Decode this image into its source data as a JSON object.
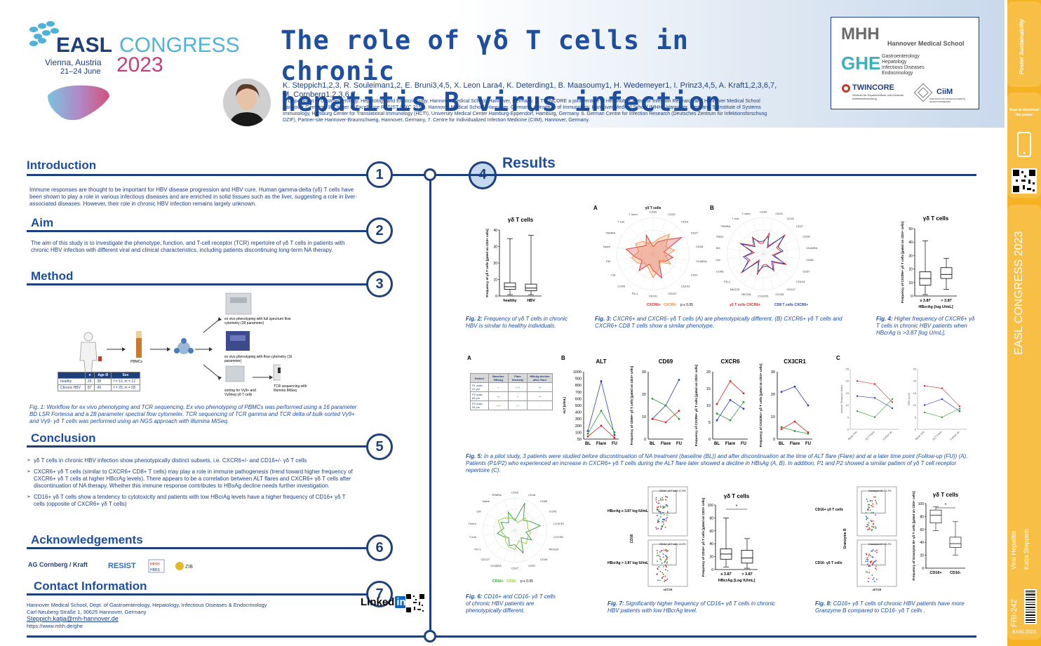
{
  "header": {
    "easl": "EASL",
    "congress": "CONGRESS",
    "city": "Vienna, Austria",
    "dates": "21–24 June",
    "year": "2023",
    "title_line1": "The role of γδ T cells in chronic",
    "title_line2": "hepatitis B virus infection",
    "authors": "K. Steppich1,2,3, R. Souleiman1,2, E. Bruni3,4,5, X. Leon Lara4, K. Deterding1, B. Maasoumy1, H. Wedemeyer1, I. Prinz3,4,5, A. Kraft1,2,3,6,7, M. Cornberg1,2,3,6,7",
    "affiliations": "1. Department of Gastroenterology, Hepatology and Endocrinology, Hannover Medical School, Hannover, Germany. 2. TWINCORE a joint venture of Helmholtz Centre for Infection Research and Hannover Medical School Hannover Germany. 3. Cluster of Excellence RESIST (EXC 2155), Hannover Medical School, Hannover, Germany. 4. Institute of Immunology, Hannover Medical School (MHH), Hannover, Germany. 5. Institute of Systems Immunology, Hamburg Center for Translational Immunology (HCTI), University Medical Center Hamburg-Eppendorf, Hamburg, Germany. 6. German Centre for Infection Research (Deutsches Zentrum für Infektionsforschung DZIF), Partner-site Hannover-Braunschweig, Hannover, Germany, 7. Centre for Individualized Infection Medicine (CIIM), Hannover, Germany."
  },
  "institutions": {
    "mhh": "Hannover Medical School",
    "ghe_lines": [
      "Gastroenterology",
      "Hepatology",
      "Infectious Diseases",
      "Endocrinology"
    ],
    "twincore": "TWINCORE",
    "twincore_sub": "Zentrum für Experimentelle und Klinische Infektionsforschung",
    "ciim": "CiiM",
    "ciim_sub": "ZENTRUM FÜR INDIVIDUALISIERTE INFEKTIONSMEDIZIN"
  },
  "sidebar": {
    "scan_text": "Scan to download the poster",
    "congress": "EASL CONGRESS 2023",
    "topic": "Viral Hepatitis",
    "author": "Katja Steppich",
    "code": "FRI-242",
    "footer": "EASL2023"
  },
  "sections": {
    "intro_title": "Introduction",
    "intro_text": "Immune responses are thought to be important for HBV disease progression and HBV cure. Human gamma-delta (γδ) T cells have been shown to play a role in various infectious diseases and are enriched in solid tissues such as the liver, suggesting a role in liver-associated diseases. However, their role in chronic HBV infection remains largely unknown.",
    "aim_title": "Aim",
    "aim_text": "The aim of this study is to investigate the phenotype, function, and T-cell receptor (TCR) repertoire of γδ T cells in patients with chronic HBV infection with different viral and clinical characteristics, including patients discontinuing long-term NA therapy.",
    "method_title": "Method",
    "method_caption": "Fig. 1: Workflow for ex vivo phenotyping and TCR sequencing. Ex vivo phenotyping of PBMCs was performed using a 16 parameter BD LSR Fortessa and a 28 parameter spectral flow cytometer. TCR sequencing of TCR gamma and TCR delta of bulk-sorted Vγ9+ and Vγ9- γδ T cells was performed using an NGS approach with Illumina MiSeq.",
    "conclusion_title": "Conclusion",
    "conclusion_items": [
      "γδ T cells in chronic HBV infection show phenotypically distinct subsets, i.e. CXCR6+/- and CD16+/- γδ T cells",
      "CXCR6+ γδ T cells (similar to CXCR6+ CD8+ T cells) may play a role in immune pathogenesis (trend toward higher frequency of CXCR6+ γδ T cells at higher HBcrAg levels). There appears to be a correlation between ALT flares and CXCR6+ γδ T cells after discontinuation of NA therapy. Whether this immune response contributes to HBsAg decline needs further investigation.",
      "CD16+ γδ T cells show a tendency to cytotoxicity and patients with low HBcrAg levels have a higher frequency of CD16+ γδ T cells (opposite of CXCR6+ γδ T cells)"
    ],
    "ack_title": "Acknowledgements",
    "ack_group": "AG Cornberg / Kraft",
    "contact_title": "Contact Information",
    "contact_lines": [
      "Hannover Medical School, Dept. of Gastroenterology, Hepatology, Infectious Diseases & Endocrinology",
      "Carl-Neuberg-Straße 1, 30625 Hannover, Germany",
      "Steppich.katja@mh-hannover.de",
      "https://www.mhh.de/ghe"
    ],
    "linkedin": "Linked",
    "linkedin_in": "in",
    "results_title": "Results"
  },
  "numbers": [
    "1",
    "2",
    "3",
    "4",
    "5",
    "6",
    "7"
  ],
  "method": {
    "pbmcs": "PBMCs",
    "flow1": "ex vivo phenotyping with full spectrum flow cytometry (28 parameter)",
    "flow2": "ex vivo phenotyping with flow cytometry (16 parameter)",
    "sorting": "sorting for Vγ9+ and Vγ9neg γδ T cells",
    "tcr": "TCR sequencing with Illumina MiSeq",
    "table_headers": [
      "",
      "n",
      "Age Ø",
      "Sex"
    ],
    "table_rows": [
      [
        "healthy",
        "25",
        "38",
        "f = 13, m = 12"
      ],
      [
        "Chronic HBV",
        "87",
        "49",
        "f = 29, m = 58"
      ]
    ]
  },
  "figs": {
    "fig2_caption_b": "Fig. 2:",
    "fig2_caption": " Frequency of γδ T cells in chronic HBV is similar to healthy individuals.",
    "fig3_caption_b": "Fig. 3:",
    "fig3_caption": " CXCR6+ and CXCR6- γδ T cells (A) are phenotypically different. (B) CXCR6+ γδ T cells and CXCR6+ CD8 T cells show a similar phenotype.",
    "fig4_caption_b": "Fig. 4:",
    "fig4_caption": " Higher frequency of CXCR6+ γδ T cells in chronic HBV patients when HBcrAg is >3.87 [log U/mL].",
    "fig5_caption_b": "Fig. 5:",
    "fig5_caption": " In a pilot study, 3 patients were studied before discontinuation of NA treatment (baseline (BL)) and after discontinuation at the time of ALT flare (Flare) and at a later time point (Follow-up (FU)) (A). Patients (P1/P2) who experienced an increase in CXCR6+ γδ T cells during the ALT flare later showed a decline in HBsAg (A, B). In addition, P1 and P2 showed a similar pattern of γδ T cell receptor repertoire (C).",
    "fig6_caption_b": "Fig. 6:",
    "fig6_caption": " CD16+ and CD16- γδ T cells of chronic HBV patients are phenotypically different.",
    "fig7_caption_b": "Fig. 7:",
    "fig7_caption": " Significantly higher frequency of CD16+ γδ T cells in chronic HBV patients with low HBcrAg level.",
    "fig8_caption_b": "Fig. 8:",
    "fig8_caption": " CD16+ γδ T cells of chronic HBV patients have more Granzyme B compared to CD16- γδ T cells ."
  },
  "fig2": {
    "title": "γδ T cells",
    "ylabel": "Frequency of γδ T cells [gated on CD3+ cells]",
    "yticks": [
      "0",
      "10",
      "20",
      "30",
      "40"
    ],
    "cats": [
      "healthy",
      "HBV"
    ]
  },
  "fig3": {
    "labelA": "A",
    "labelB": "B",
    "titleA": "γδ T cells",
    "axesA": [
      "CD69",
      "CD25",
      "CD16",
      "CD27",
      "CD28",
      "CD45RA",
      "CD57",
      "CD103",
      "CD127",
      "CD161",
      "PD-1",
      "CCR5",
      "CM",
      "EM",
      "Naive",
      "TEMRA",
      "T eok.",
      "T mem."
    ],
    "axesB": [
      "CD69",
      "CD25",
      "CD16",
      "CD27",
      "CD28",
      "CD45RA",
      "CD56",
      "CD57",
      "CD103",
      "CD127",
      "CD161",
      "CX3CR1",
      "NKG2A",
      "NKG2D",
      "PD-1",
      "CCR5",
      "CM",
      "EM",
      "Naive",
      "TEMRA",
      "T eok.",
      "T mem."
    ],
    "legendA": [
      "CXCR6+",
      "CXCR6-",
      "p ≤ 0.05"
    ],
    "legendB": [
      "γδ T cells CXCR6+",
      "CD8 T cells CXCR6+"
    ]
  },
  "fig4": {
    "title": "γδ T cells",
    "ylabel": "Frequency of CXCR6+ γδ T cells [gated on CD3+ cells]",
    "yticks": [
      "0",
      "10",
      "20",
      "30",
      "40",
      "50"
    ],
    "cats": [
      "≤ 3.87",
      "> 3.87"
    ],
    "xlabel": "HBcrAg [log U/mL]"
  },
  "fig5": {
    "labelA": "A",
    "labelB": "B",
    "labelC": "C",
    "table_headers": [
      "Patient",
      "Baseline HBsAg",
      "Flare Intensity",
      "HBsAg decline after Flare"
    ],
    "table_rows": [
      [
        "P1 male, 47 yrs",
        "+",
        "+++",
        "++"
      ],
      [
        "P2 male, 65 yrs",
        "++",
        "+",
        "++"
      ],
      [
        "P3 male, 54 yrs",
        "+++",
        "++",
        "-"
      ]
    ],
    "charts": [
      {
        "title": "ALT",
        "ylabel": "ALT [U/mL]",
        "yticks": [
          "50",
          "100",
          "200",
          "300",
          "400",
          "500",
          "600",
          "700",
          "800",
          "900",
          "1000"
        ]
      },
      {
        "title": "CD69",
        "ylabel": "Frequency of CD69+ γδ T cells [gated on CD3+ cells]",
        "yticks": [
          "0",
          "10",
          "20",
          "30"
        ]
      },
      {
        "title": "CXCR6",
        "ylabel": "Frequency of CXCR6+ γδ T cells [gated on CD3+ cells]",
        "yticks": [
          "0",
          "5",
          "10",
          "15",
          "20"
        ]
      },
      {
        "title": "CX3CR1",
        "ylabel": "Frequency of CX3CR1+ γδ T cells [gated on CD3+ cells]",
        "yticks": [
          "0",
          "10",
          "20",
          "30"
        ]
      }
    ],
    "xcats": [
      "BL",
      "Flare",
      "FU"
    ],
    "c_ylabel1": "Inverse Simpson Index",
    "c_ylabel2": "D50 score",
    "c_yticks1": [
      "0",
      "5",
      "10",
      "15",
      "20",
      "25"
    ],
    "c_yticks2": [
      "0",
      "5",
      "10",
      "15",
      "20",
      "25"
    ],
    "c_xcats": [
      "Base line",
      "ALT Flare",
      "Follow up"
    ]
  },
  "fig6": {
    "axes": [
      "CD25",
      "CD16",
      "CD69",
      "CCR5",
      "CX3CR1",
      "CXCR6",
      "NKG2A",
      "CD28",
      "CD57",
      "CD27",
      "CD45RA",
      "CD127",
      "PD-1",
      "T-eok",
      "Tmem",
      "CM",
      "Naive",
      "TEMRA"
    ],
    "legend": [
      "CD16+",
      "CD16-",
      "p ≤ 0.05"
    ]
  },
  "fig7": {
    "label_low": "HBcrAg ≤ 3.87 log IU/mL",
    "label_high": "HBcrAg > 3.87 log IU/mL",
    "gate1": "CD16+ γδ T cells 47.8%",
    "gate2": "CD16+ γδ T cells 16.9%",
    "yaxis": "CD16",
    "xaxis": "γδTCR",
    "title": "γδ T cells",
    "ylabel": "Frequency of CD16+ γδ T cells [gated on CD3+ cells]",
    "yticks": [
      "0",
      "20",
      "40",
      "60",
      "80",
      "100"
    ],
    "cats": [
      "≤ 3.87",
      "> 3.87"
    ],
    "xlabel": "HBcrAg [Log IU/mL]",
    "sig": "*"
  },
  "fig8": {
    "label_pos": "CD16+ γδ T cells",
    "label_neg": "CD16- γδ T cells",
    "gate1": "Granzyme B+ 71.2%",
    "gate2": "Granzyme B+ 51.2%",
    "yaxis": "Granzyme B",
    "xaxis": "γδTCR",
    "title": "γδ T cells",
    "ylabel": "Frequency of Granzyme B+ γδ T cells [gated on CD3+ cells]",
    "yticks": [
      "0",
      "20",
      "40",
      "60",
      "80",
      "100"
    ],
    "cats": [
      "CD16+",
      "CD16-"
    ],
    "sig": "*"
  },
  "colors": {
    "navy": "#1d3f7c",
    "title_blue": "#1d4ea0",
    "sidebar": "#f5b324",
    "cxcr6_pos": "#d9262b",
    "cxcr6_neg": "#f08a3c",
    "cd16_pos": "#2e9b34",
    "cd16_neg": "#8fc640"
  }
}
